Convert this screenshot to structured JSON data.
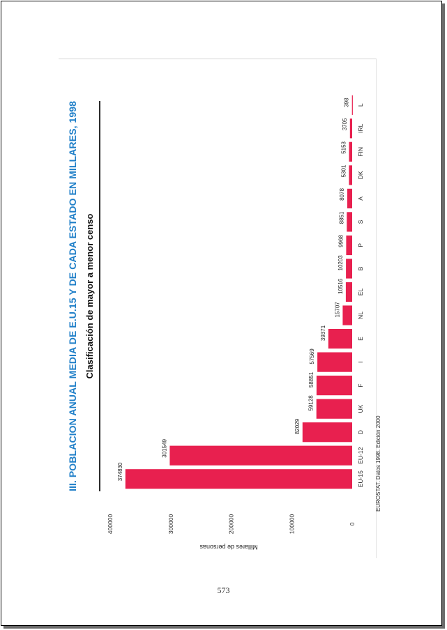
{
  "chart_data": {
    "type": "bar",
    "title": "III. POBLACION ANUAL MEDIA DE E.U.15 Y DE CADA ESTADO EN MILLARES, 1998",
    "subtitle": "Clasificación de mayor a menor censo",
    "ylabel": "Millares de personas",
    "xlabel": "",
    "categories": [
      "EU-15",
      "EU-12",
      "D",
      "UK",
      "F",
      "I",
      "E",
      "NL",
      "EL",
      "B",
      "P",
      "S",
      "A",
      "DK",
      "FIN",
      "IRL",
      "L"
    ],
    "values": [
      374830,
      301549,
      82029,
      59128,
      58851,
      57569,
      39371,
      15707,
      10516,
      10203,
      9968,
      8851,
      8078,
      5301,
      5153,
      3705,
      398
    ],
    "value_labels": [
      "374830",
      "301549",
      "82029",
      "59128",
      "58851",
      "57569",
      "39371",
      "15707",
      "10516",
      "10203",
      "9968",
      "8851",
      "8078",
      "5301",
      "5153",
      "3705",
      "398"
    ],
    "y_ticks": [
      "0",
      "100000",
      "200000",
      "300000",
      "400000"
    ],
    "ylim": [
      0,
      400000
    ],
    "bar_color": "#e8204f",
    "grid": false,
    "orientation": "rotated 90° (page printed landscape)",
    "source": "EUROSTAT. Datos 1998. Edición 2000"
  },
  "page": {
    "number": "573"
  }
}
